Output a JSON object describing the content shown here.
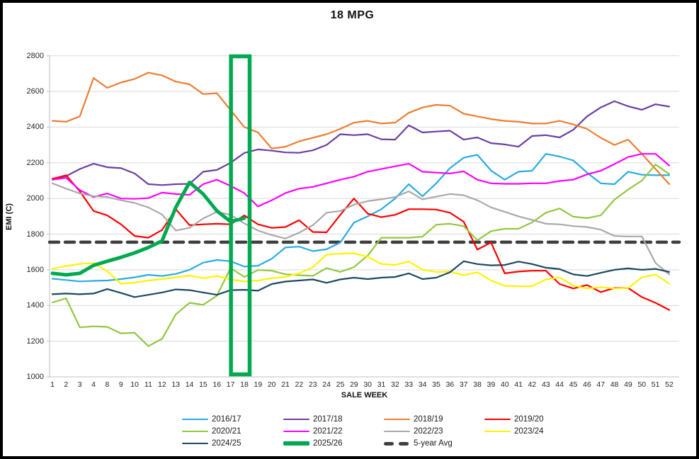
{
  "chart_data": {
    "type": "line",
    "title": "18 MPG",
    "xlabel": "SALE WEEK",
    "ylabel": "EMI (C)",
    "ylim": [
      1000,
      2800
    ],
    "y_ticks": [
      2800,
      2600,
      2400,
      2200,
      2000,
      1800,
      1600,
      1400,
      1200,
      1000
    ],
    "grid": "horizontal",
    "legend_position": "bottom",
    "categories": [
      "1",
      "2",
      "3",
      "4",
      "8",
      "9",
      "10",
      "11",
      "12",
      "13",
      "14",
      "15",
      "16",
      "17",
      "18",
      "19",
      "20",
      "21",
      "22",
      "23",
      "24",
      "25",
      "29",
      "30",
      "31",
      "32",
      "33",
      "34",
      "35",
      "36",
      "37",
      "38",
      "39",
      "40",
      "41",
      "42",
      "43",
      "44",
      "45",
      "46",
      "47",
      "48",
      "49",
      "50",
      "51",
      "52"
    ],
    "highlight_box": {
      "from_category": "17",
      "to_category": "18",
      "color": "#00A94F",
      "note": "green rectangle highlighting sale weeks 17-18 over full chart height"
    },
    "series": [
      {
        "name": "2016/17",
        "color": "#29ABE2",
        "width": 2.2,
        "values": [
          1550,
          1543,
          1535,
          1538,
          1540,
          1548,
          1558,
          1572,
          1565,
          1577,
          1600,
          1640,
          1655,
          1648,
          1618,
          1623,
          1662,
          1725,
          1730,
          1705,
          1715,
          1753,
          1865,
          1900,
          1940,
          2000,
          2080,
          2012,
          2085,
          2170,
          2228,
          2245,
          2156,
          2105,
          2150,
          2155,
          2250,
          2235,
          2213,
          2145,
          2085,
          2080,
          2150,
          2133,
          2130,
          2130
        ]
      },
      {
        "name": "2017/18",
        "color": "#6A3FA0",
        "width": 2.2,
        "values": [
          2110,
          2125,
          2165,
          2195,
          2175,
          2170,
          2140,
          2080,
          2075,
          2080,
          2082,
          2150,
          2160,
          2200,
          2255,
          2275,
          2268,
          2258,
          2256,
          2270,
          2300,
          2360,
          2355,
          2360,
          2332,
          2330,
          2410,
          2370,
          2375,
          2380,
          2330,
          2342,
          2310,
          2303,
          2290,
          2350,
          2355,
          2342,
          2385,
          2460,
          2510,
          2545,
          2517,
          2497,
          2528,
          2515
        ]
      },
      {
        "name": "2018/19",
        "color": "#ED7D31",
        "width": 2.2,
        "values": [
          2435,
          2430,
          2460,
          2675,
          2620,
          2650,
          2670,
          2705,
          2690,
          2655,
          2640,
          2585,
          2590,
          2495,
          2400,
          2370,
          2280,
          2290,
          2320,
          2340,
          2360,
          2390,
          2425,
          2435,
          2420,
          2425,
          2480,
          2510,
          2525,
          2520,
          2475,
          2460,
          2445,
          2435,
          2430,
          2420,
          2420,
          2435,
          2415,
          2390,
          2340,
          2300,
          2330,
          2250,
          2165,
          2080
        ]
      },
      {
        "name": "2019/20",
        "color": "#FF0000",
        "width": 2.2,
        "values": [
          2110,
          2130,
          2040,
          1930,
          1905,
          1855,
          1790,
          1780,
          1823,
          1940,
          1850,
          1855,
          1858,
          1855,
          1905,
          1855,
          1835,
          1840,
          1878,
          1812,
          1810,
          1908,
          2000,
          1915,
          1895,
          1908,
          1940,
          1940,
          1938,
          1920,
          1870,
          1713,
          1753,
          1580,
          1590,
          1595,
          1595,
          1520,
          1495,
          1515,
          1475,
          1498,
          1498,
          1447,
          1415,
          1375
        ]
      },
      {
        "name": "2020/21",
        "color": "#92C83E",
        "width": 2.2,
        "values": [
          1417,
          1440,
          1277,
          1283,
          1280,
          1244,
          1247,
          1172,
          1213,
          1350,
          1415,
          1404,
          1455,
          1610,
          1560,
          1599,
          1595,
          1575,
          1570,
          1566,
          1610,
          1588,
          1615,
          1680,
          1780,
          1780,
          1780,
          1786,
          1853,
          1858,
          1845,
          1765,
          1817,
          1830,
          1830,
          1866,
          1920,
          1944,
          1898,
          1890,
          1905,
          1993,
          2050,
          2100,
          2190,
          2137
        ]
      },
      {
        "name": "2021/22",
        "color": "#FF00FF",
        "width": 2.2,
        "values": [
          2105,
          2115,
          2047,
          2008,
          2028,
          2000,
          1998,
          2002,
          2033,
          2025,
          2020,
          2080,
          2105,
          2070,
          2030,
          1955,
          1990,
          2030,
          2055,
          2065,
          2085,
          2105,
          2122,
          2150,
          2165,
          2180,
          2195,
          2150,
          2145,
          2140,
          2152,
          2105,
          2085,
          2082,
          2082,
          2085,
          2085,
          2098,
          2105,
          2135,
          2155,
          2193,
          2232,
          2250,
          2250,
          2185
        ]
      },
      {
        "name": "2022/23",
        "color": "#A9A9A9",
        "width": 2.2,
        "values": [
          2085,
          2055,
          2028,
          2013,
          2008,
          1990,
          1975,
          1950,
          1910,
          1820,
          1835,
          1888,
          1925,
          1908,
          1860,
          1820,
          1795,
          1775,
          1808,
          1850,
          1920,
          1930,
          1965,
          1985,
          1995,
          2008,
          2040,
          1995,
          2010,
          2025,
          2018,
          1990,
          1950,
          1925,
          1900,
          1880,
          1858,
          1855,
          1845,
          1840,
          1825,
          1790,
          1787,
          1787,
          1638,
          1574
        ]
      },
      {
        "name": "2023/24",
        "color": "#FFF200",
        "width": 2.2,
        "values": [
          1605,
          1622,
          1633,
          1638,
          1592,
          1522,
          1528,
          1540,
          1548,
          1558,
          1568,
          1553,
          1565,
          1546,
          1535,
          1540,
          1553,
          1560,
          1580,
          1615,
          1685,
          1690,
          1693,
          1673,
          1633,
          1627,
          1647,
          1600,
          1588,
          1590,
          1570,
          1586,
          1540,
          1510,
          1508,
          1508,
          1546,
          1557,
          1512,
          1495,
          1503,
          1495,
          1498,
          1558,
          1573,
          1522
        ]
      },
      {
        "name": "2024/25",
        "color": "#1D4860",
        "width": 2.2,
        "values": [
          1463,
          1467,
          1463,
          1467,
          1492,
          1470,
          1447,
          1460,
          1473,
          1490,
          1486,
          1473,
          1460,
          1486,
          1488,
          1483,
          1520,
          1534,
          1540,
          1546,
          1527,
          1546,
          1556,
          1548,
          1556,
          1560,
          1580,
          1548,
          1556,
          1586,
          1648,
          1632,
          1625,
          1627,
          1646,
          1632,
          1612,
          1604,
          1574,
          1565,
          1583,
          1600,
          1608,
          1600,
          1605,
          1588
        ]
      },
      {
        "name": "2025/26",
        "color": "#00A94F",
        "width": 5,
        "values": [
          1580,
          1572,
          1580,
          1625,
          1648,
          1670,
          1695,
          1725,
          1762,
          1950,
          2090,
          2025,
          1930,
          1870,
          1890,
          null,
          null,
          null,
          null,
          null,
          null,
          null,
          null,
          null,
          null,
          null,
          null,
          null,
          null,
          null,
          null,
          null,
          null,
          null,
          null,
          null,
          null,
          null,
          null,
          null,
          null,
          null,
          null,
          null,
          null,
          null
        ]
      },
      {
        "name": "5-year Avg",
        "color": "#3F3F3F",
        "width": 4.5,
        "style": "dashed",
        "constant_value": 1755
      }
    ]
  }
}
